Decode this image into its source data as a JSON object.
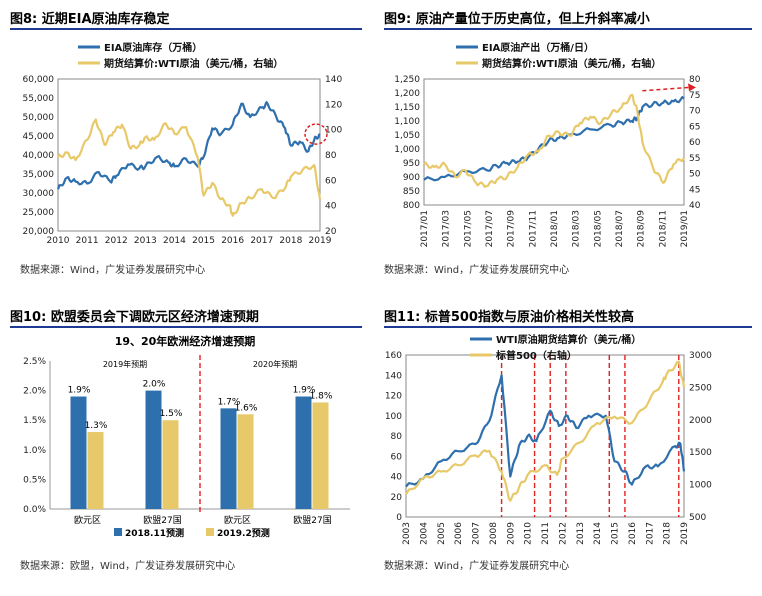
{
  "panels": {
    "p8": {
      "title": "图8:  近期EIA原油库存稳定",
      "source": "数据来源：Wind，广发证券发展研究中心"
    },
    "p9": {
      "title": "图9:  原油产量位于历史高位，但上升斜率减小",
      "source": "数据来源：Wind，广发证券发展研究中心"
    },
    "p10": {
      "title": "图10:  欧盟委员会下调欧元区经济增速预期",
      "source": "数据来源：欧盟，Wind，广发证券发展研究中心"
    },
    "p11": {
      "title": "图11:  标普500指数与原油价格相关性较高",
      "source": "数据来源：Wind，广发证券发展研究中心"
    }
  },
  "colors": {
    "blue": "#2e6fad",
    "yellow": "#e8c96a",
    "red": "#e02020",
    "rule": "#1f3a93"
  },
  "chart_data": [
    {
      "id": "fig8",
      "type": "line",
      "legend": [
        "EIA原油库存（万桶）",
        "期货结算价:WTI原油（美元/桶，右轴）"
      ],
      "x_ticks": [
        "2010",
        "2011",
        "2012",
        "2013",
        "2014",
        "2015",
        "2016",
        "2017",
        "2018",
        "2019"
      ],
      "x_range": [
        2010,
        2019
      ],
      "y_left": {
        "min": 20000,
        "max": 60000,
        "ticks": [
          "20,000",
          "25,000",
          "30,000",
          "35,000",
          "40,000",
          "45,000",
          "50,000",
          "55,000",
          "60,000"
        ]
      },
      "y_right": {
        "min": 20,
        "max": 140,
        "ticks": [
          "20",
          "40",
          "60",
          "80",
          "100",
          "120",
          "140"
        ]
      },
      "series": [
        {
          "name": "EIA原油库存",
          "axis": "left",
          "color": "#2e6fad",
          "x": [
            2010,
            2010.3,
            2010.6,
            2011,
            2011.4,
            2011.8,
            2012,
            2012.4,
            2012.8,
            2013,
            2013.4,
            2013.8,
            2014,
            2014.4,
            2014.8,
            2015,
            2015.3,
            2015.6,
            2016,
            2016.3,
            2016.6,
            2017,
            2017.2,
            2017.5,
            2017.8,
            2018,
            2018.3,
            2018.6,
            2018.8,
            2019
          ],
          "y": [
            31000,
            34000,
            33000,
            32500,
            35500,
            33000,
            34500,
            37500,
            36500,
            37000,
            39500,
            38000,
            37000,
            39000,
            37000,
            39500,
            47000,
            45500,
            48000,
            53500,
            50000,
            52500,
            53500,
            50000,
            47000,
            42500,
            43500,
            41000,
            44000,
            45500
          ]
        },
        {
          "name": "WTI原油",
          "axis": "right",
          "color": "#e8c96a",
          "x": [
            2010,
            2010.3,
            2010.6,
            2011,
            2011.3,
            2011.6,
            2011.9,
            2012.2,
            2012.5,
            2012.8,
            2013,
            2013.3,
            2013.7,
            2014,
            2014.4,
            2014.8,
            2015,
            2015.3,
            2015.6,
            2015.9,
            2016,
            2016.3,
            2016.6,
            2017,
            2017.4,
            2017.8,
            2018,
            2018.4,
            2018.8,
            2019
          ],
          "y": [
            78,
            82,
            76,
            92,
            108,
            88,
            98,
            104,
            85,
            88,
            94,
            92,
            105,
            97,
            102,
            78,
            48,
            58,
            45,
            40,
            32,
            42,
            46,
            53,
            46,
            54,
            63,
            68,
            72,
            45
          ]
        }
      ],
      "annotation": "red dashed circle at end of series"
    },
    {
      "id": "fig9",
      "type": "line",
      "legend": [
        "EIA原油产出（万桶/日）",
        "期货结算价:WTI原油（美元/桶，右轴）"
      ],
      "x_ticks": [
        "2017/01",
        "2017/03",
        "2017/05",
        "2017/07",
        "2017/09",
        "2017/11",
        "2018/01",
        "2018/03",
        "2018/05",
        "2018/07",
        "2018/09",
        "2018/11",
        "2019/01"
      ],
      "x_range": [
        0,
        25
      ],
      "y_left": {
        "min": 800,
        "max": 1250,
        "ticks": [
          "800",
          "850",
          "900",
          "950",
          "1,000",
          "1,050",
          "1,100",
          "1,150",
          "1,200",
          "1,250"
        ]
      },
      "y_right": {
        "min": 40,
        "max": 80,
        "ticks": [
          "40",
          "45",
          "50",
          "55",
          "60",
          "65",
          "70",
          "75",
          "80"
        ]
      },
      "series": [
        {
          "name": "EIA原油产出",
          "axis": "left",
          "color": "#2e6fad",
          "x": [
            0,
            2,
            4,
            6,
            7,
            8,
            9,
            10,
            11,
            12,
            13,
            14,
            16,
            18,
            19,
            20,
            20.5,
            21,
            22,
            23,
            24,
            25
          ],
          "y": [
            890,
            900,
            920,
            925,
            940,
            950,
            955,
            970,
            1000,
            1030,
            1040,
            1050,
            1070,
            1085,
            1095,
            1100,
            1110,
            1150,
            1160,
            1165,
            1170,
            1180
          ]
        },
        {
          "name": "WTI原油",
          "axis": "right",
          "color": "#e8c96a",
          "x": [
            0,
            1,
            2,
            3,
            4,
            5,
            6,
            7,
            8,
            9,
            10,
            11,
            12,
            13,
            14,
            15,
            16,
            17,
            18,
            19,
            20,
            20.5,
            21,
            22,
            23,
            24,
            25
          ],
          "y": [
            53,
            52,
            53,
            49,
            51,
            47,
            46,
            48,
            49,
            52,
            56,
            57,
            62,
            63,
            62,
            66,
            68,
            66,
            69,
            71,
            75,
            70,
            60,
            52,
            47,
            53,
            55
          ]
        }
      ],
      "annotation": "red dashed arrow indicating slowing upward slope"
    },
    {
      "id": "fig10",
      "type": "bar",
      "title": "19、20年欧洲经济增速预期",
      "group_labels": [
        "2019年预期",
        "2020年预期"
      ],
      "categories": [
        "欧元区",
        "欧盟27国",
        "欧元区",
        "欧盟27国"
      ],
      "y_range": [
        0,
        2.5
      ],
      "y_ticks": [
        "0.0%",
        "0.5%",
        "1.0%",
        "1.5%",
        "2.0%",
        "2.5%"
      ],
      "series": [
        {
          "name": "2018.11预测",
          "color": "#2e6fad",
          "values": [
            1.9,
            2.0,
            1.7,
            1.9
          ],
          "labels": [
            "1.9%",
            "2.0%",
            "1.7%",
            "1.9%"
          ]
        },
        {
          "name": "2019.2预测",
          "color": "#e8c96a",
          "values": [
            1.3,
            1.5,
            1.6,
            1.8
          ],
          "labels": [
            "1.3%",
            "1.5%",
            "1.6%",
            "1.8%"
          ]
        }
      ]
    },
    {
      "id": "fig11",
      "type": "line",
      "legend": [
        "WTI原油期货结算价（美元/桶）",
        "标普500（右轴）"
      ],
      "x_ticks": [
        "2003",
        "2004",
        "2005",
        "2006",
        "2007",
        "2008",
        "2009",
        "2010",
        "2011",
        "2012",
        "2013",
        "2014",
        "2015",
        "2016",
        "2017",
        "2018",
        "2019"
      ],
      "x_range": [
        2003,
        2019
      ],
      "y_left": {
        "min": 0,
        "max": 160,
        "ticks": [
          "0",
          "20",
          "40",
          "60",
          "80",
          "100",
          "120",
          "140",
          "160"
        ]
      },
      "y_right": {
        "min": 500,
        "max": 3000,
        "ticks": [
          "500",
          "1000",
          "1500",
          "2000",
          "2500",
          "3000"
        ]
      },
      "vlines": [
        2008.5,
        2010.4,
        2011.3,
        2012.2,
        2014.7,
        2015.6,
        2018.7
      ],
      "series": [
        {
          "name": "WTI原油",
          "axis": "left",
          "color": "#2e6fad",
          "x": [
            2003,
            2004,
            2005,
            2006,
            2007,
            2007.8,
            2008.5,
            2009,
            2009.5,
            2010,
            2010.5,
            2011.3,
            2011.8,
            2012.3,
            2012.8,
            2013.5,
            2014.5,
            2015,
            2015.6,
            2016,
            2016.8,
            2017.5,
            2018.5,
            2018.8,
            2019
          ],
          "y": [
            30,
            38,
            55,
            65,
            72,
            95,
            140,
            40,
            70,
            80,
            75,
            105,
            90,
            100,
            88,
            100,
            100,
            55,
            45,
            32,
            50,
            50,
            70,
            72,
            45
          ]
        },
        {
          "name": "标普500",
          "axis": "right",
          "color": "#e8c96a",
          "x": [
            2003,
            2004,
            2005,
            2006,
            2007,
            2007.8,
            2008.5,
            2009,
            2009.5,
            2010,
            2011,
            2011.7,
            2012,
            2013,
            2014,
            2015,
            2016,
            2017,
            2017.8,
            2018,
            2018.7,
            2019
          ],
          "y": [
            850,
            1100,
            1200,
            1300,
            1450,
            1520,
            1200,
            750,
            950,
            1150,
            1300,
            1150,
            1400,
            1650,
            1950,
            2050,
            1950,
            2300,
            2600,
            2700,
            2900,
            2500
          ]
        }
      ]
    }
  ]
}
